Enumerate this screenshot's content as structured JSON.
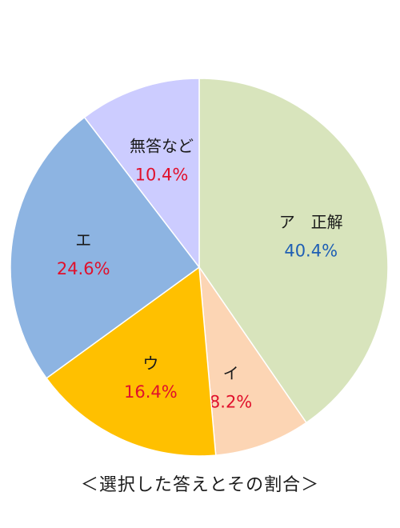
{
  "chart_data": {
    "type": "pie",
    "title": "",
    "caption": "＜選択した答えとその割合＞",
    "slices": [
      {
        "label": "ア　正解",
        "value": 40.4,
        "value_text": "40.4%",
        "color": "#d8e4bc",
        "value_color": "#1f5fb4"
      },
      {
        "label": "イ",
        "value": 8.2,
        "value_text": "8.2%",
        "color": "#fcd5b4",
        "value_color": "#e0102c"
      },
      {
        "label": "ウ",
        "value": 16.4,
        "value_text": "16.4%",
        "color": "#ffc000",
        "value_color": "#e0102c"
      },
      {
        "label": "エ",
        "value": 24.6,
        "value_text": "24.6%",
        "color": "#8db4e2",
        "value_color": "#e0102c"
      },
      {
        "label": "無答など",
        "value": 10.4,
        "value_text": "10.4%",
        "color": "#ccccff",
        "value_color": "#e0102c"
      }
    ]
  }
}
